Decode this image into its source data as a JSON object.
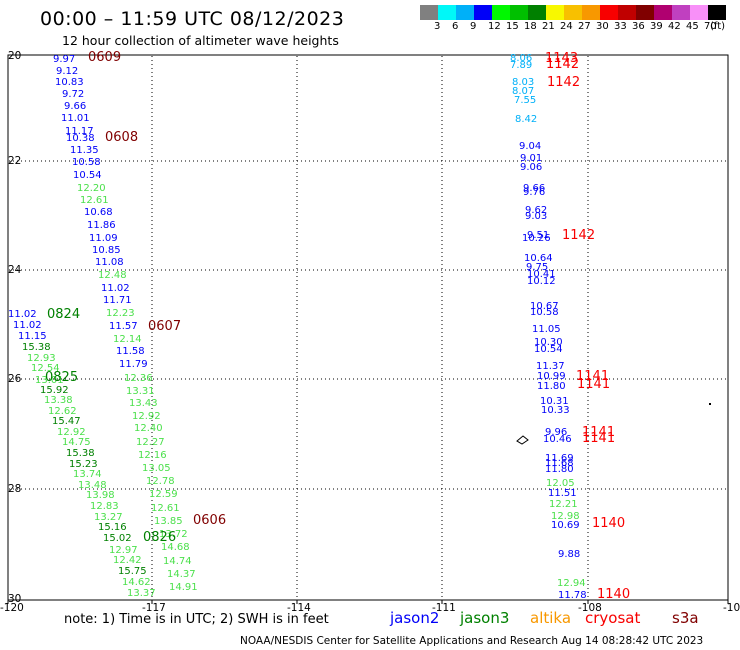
{
  "header": {
    "title": "00:00 – 11:59 UTC 08/12/2023",
    "subtitle": "12 hour collection of altimeter wave heights"
  },
  "legend": {
    "colors": [
      "#808080",
      "#00f8f8",
      "#00b0f8",
      "#0000f8",
      "#00f800",
      "#00c000",
      "#008000",
      "#f8f800",
      "#f8c000",
      "#f89800",
      "#f80000",
      "#c00000",
      "#800000",
      "#b00070",
      "#c040c0",
      "#f890f8",
      "#000000"
    ],
    "labels": [
      "3",
      "6",
      "9",
      "12",
      "15",
      "18",
      "21",
      "24",
      "27",
      "30",
      "33",
      "36",
      "39",
      "42",
      "45",
      "70"
    ],
    "unit": "(ft)"
  },
  "axes": {
    "x_ticks": [
      "-120",
      "-117",
      "-114",
      "-111",
      "-108",
      "-10"
    ],
    "y_ticks": [
      "20",
      "22",
      "24",
      "26",
      "28",
      "30"
    ]
  },
  "footer": {
    "note": "note:  1) Time is in UTC;  2) SWH is in feet",
    "credit": "NOAA/NESDIS Center for Satellite Applications and Research   Aug 14 08:28:42 UTC 2023"
  },
  "missions": [
    {
      "name": "jason2",
      "color": "#0000f8"
    },
    {
      "name": "jason3",
      "color": "#008000"
    },
    {
      "name": "altika",
      "color": "#f89800"
    },
    {
      "name": "cryosat",
      "color": "#f80000"
    },
    {
      "name": "s3a",
      "color": "#800000"
    }
  ],
  "tracks": [
    {
      "time": "0609",
      "color": "#800000"
    },
    {
      "time": "0608",
      "color": "#800000"
    },
    {
      "time": "0607",
      "color": "#800000"
    },
    {
      "time": "0606",
      "color": "#800000"
    },
    {
      "time": "0824",
      "color": "#008000"
    },
    {
      "time": "0825",
      "color": "#008000"
    },
    {
      "time": "0826",
      "color": "#008000"
    },
    {
      "time": "1143",
      "color": "#f80000"
    },
    {
      "time": "1142",
      "color": "#f80000"
    },
    {
      "time": "1142",
      "color": "#f80000"
    },
    {
      "time": "1142",
      "color": "#f80000"
    },
    {
      "time": "1141",
      "color": "#f80000"
    },
    {
      "time": "1141",
      "color": "#f80000"
    },
    {
      "time": "1141",
      "color": "#f80000"
    },
    {
      "time": "1141",
      "color": "#f80000"
    },
    {
      "time": "1140",
      "color": "#f80000"
    },
    {
      "time": "1140",
      "color": "#f80000"
    }
  ],
  "points": [
    {
      "v": "9.97",
      "c": "#0000f8"
    },
    {
      "v": "9.12",
      "c": "#0000f8"
    },
    {
      "v": "10.83",
      "c": "#0000f8"
    },
    {
      "v": "9.72",
      "c": "#0000f8"
    },
    {
      "v": "9.66",
      "c": "#0000f8"
    },
    {
      "v": "11.01",
      "c": "#0000f8"
    },
    {
      "v": "11.17",
      "c": "#0000f8"
    },
    {
      "v": "10.38",
      "c": "#0000f8"
    },
    {
      "v": "11.35",
      "c": "#0000f8"
    },
    {
      "v": "10.58",
      "c": "#0000f8"
    },
    {
      "v": "10.54",
      "c": "#0000f8"
    },
    {
      "v": "12.20",
      "c": "#4ce04c"
    },
    {
      "v": "12.61",
      "c": "#4ce04c"
    },
    {
      "v": "10.68",
      "c": "#0000f8"
    },
    {
      "v": "11.86",
      "c": "#0000f8"
    },
    {
      "v": "11.09",
      "c": "#0000f8"
    },
    {
      "v": "10.85",
      "c": "#0000f8"
    },
    {
      "v": "11.08",
      "c": "#0000f8"
    },
    {
      "v": "12.48",
      "c": "#4ce04c"
    },
    {
      "v": "11.02",
      "c": "#0000f8"
    },
    {
      "v": "11.71",
      "c": "#0000f8"
    },
    {
      "v": "12.23",
      "c": "#4ce04c"
    },
    {
      "v": "11.57",
      "c": "#0000f8"
    },
    {
      "v": "12.14",
      "c": "#4ce04c"
    },
    {
      "v": "11.58",
      "c": "#0000f8"
    },
    {
      "v": "11.79",
      "c": "#0000f8"
    },
    {
      "v": "12.36",
      "c": "#4ce04c"
    },
    {
      "v": "13.31",
      "c": "#4ce04c"
    },
    {
      "v": "13.43",
      "c": "#4ce04c"
    },
    {
      "v": "12.92",
      "c": "#4ce04c"
    },
    {
      "v": "12.40",
      "c": "#4ce04c"
    },
    {
      "v": "12.27",
      "c": "#4ce04c"
    },
    {
      "v": "12.16",
      "c": "#4ce04c"
    },
    {
      "v": "13.05",
      "c": "#4ce04c"
    },
    {
      "v": "12.78",
      "c": "#4ce04c"
    },
    {
      "v": "12.59",
      "c": "#4ce04c"
    },
    {
      "v": "12.61",
      "c": "#4ce04c"
    },
    {
      "v": "13.85",
      "c": "#4ce04c"
    },
    {
      "v": "13.72",
      "c": "#4ce04c"
    },
    {
      "v": "14.68",
      "c": "#4ce04c"
    },
    {
      "v": "14.74",
      "c": "#4ce04c"
    },
    {
      "v": "14.37",
      "c": "#4ce04c"
    },
    {
      "v": "14.91",
      "c": "#4ce04c"
    },
    {
      "v": "11.02",
      "c": "#0000f8"
    },
    {
      "v": "11.02",
      "c": "#0000f8"
    },
    {
      "v": "11.15",
      "c": "#0000f8"
    },
    {
      "v": "15.38",
      "c": "#008000"
    },
    {
      "v": "12.93",
      "c": "#4ce04c"
    },
    {
      "v": "12.54",
      "c": "#4ce04c"
    },
    {
      "v": "13.01",
      "c": "#4ce04c"
    },
    {
      "v": "15.92",
      "c": "#008000"
    },
    {
      "v": "13.38",
      "c": "#4ce04c"
    },
    {
      "v": "12.62",
      "c": "#4ce04c"
    },
    {
      "v": "15.47",
      "c": "#008000"
    },
    {
      "v": "12.92",
      "c": "#4ce04c"
    },
    {
      "v": "14.75",
      "c": "#4ce04c"
    },
    {
      "v": "15.38",
      "c": "#008000"
    },
    {
      "v": "15.23",
      "c": "#008000"
    },
    {
      "v": "13.74",
      "c": "#4ce04c"
    },
    {
      "v": "13.48",
      "c": "#4ce04c"
    },
    {
      "v": "13.98",
      "c": "#4ce04c"
    },
    {
      "v": "12.83",
      "c": "#4ce04c"
    },
    {
      "v": "13.27",
      "c": "#4ce04c"
    },
    {
      "v": "15.16",
      "c": "#008000"
    },
    {
      "v": "15.02",
      "c": "#008000"
    },
    {
      "v": "12.97",
      "c": "#4ce04c"
    },
    {
      "v": "12.42",
      "c": "#4ce04c"
    },
    {
      "v": "15.75",
      "c": "#008000"
    },
    {
      "v": "14.62",
      "c": "#4ce04c"
    },
    {
      "v": "13.37",
      "c": "#4ce04c"
    },
    {
      "v": "8.06",
      "c": "#00b0f8"
    },
    {
      "v": "7.89",
      "c": "#00b0f8"
    },
    {
      "v": "8.03",
      "c": "#00b0f8"
    },
    {
      "v": "8.07",
      "c": "#00b0f8"
    },
    {
      "v": "7.55",
      "c": "#00b0f8"
    },
    {
      "v": "8.42",
      "c": "#00b0f8"
    },
    {
      "v": "9.04",
      "c": "#0000f8"
    },
    {
      "v": "9.01",
      "c": "#0000f8"
    },
    {
      "v": "9.06",
      "c": "#0000f8"
    },
    {
      "v": "9.66",
      "c": "#0000f8"
    },
    {
      "v": "9.76",
      "c": "#0000f8"
    },
    {
      "v": "9.62",
      "c": "#0000f8"
    },
    {
      "v": "9.03",
      "c": "#0000f8"
    },
    {
      "v": "9.51",
      "c": "#0000f8"
    },
    {
      "v": "10.26",
      "c": "#0000f8"
    },
    {
      "v": "10.64",
      "c": "#0000f8"
    },
    {
      "v": "9.75",
      "c": "#0000f8"
    },
    {
      "v": "10.41",
      "c": "#0000f8"
    },
    {
      "v": "10.12",
      "c": "#0000f8"
    },
    {
      "v": "10.67",
      "c": "#0000f8"
    },
    {
      "v": "10.58",
      "c": "#0000f8"
    },
    {
      "v": "11.05",
      "c": "#0000f8"
    },
    {
      "v": "10.30",
      "c": "#0000f8"
    },
    {
      "v": "10.54",
      "c": "#0000f8"
    },
    {
      "v": "11.37",
      "c": "#0000f8"
    },
    {
      "v": "10.99",
      "c": "#0000f8"
    },
    {
      "v": "11.80",
      "c": "#0000f8"
    },
    {
      "v": "10.31",
      "c": "#0000f8"
    },
    {
      "v": "10.33",
      "c": "#0000f8"
    },
    {
      "v": "9.96",
      "c": "#0000f8"
    },
    {
      "v": "10.46",
      "c": "#0000f8"
    },
    {
      "v": "11.69",
      "c": "#0000f8"
    },
    {
      "v": "11.68",
      "c": "#0000f8"
    },
    {
      "v": "11.80",
      "c": "#0000f8"
    },
    {
      "v": "12.05",
      "c": "#4ce04c"
    },
    {
      "v": "11.51",
      "c": "#0000f8"
    },
    {
      "v": "12.21",
      "c": "#4ce04c"
    },
    {
      "v": "12.98",
      "c": "#4ce04c"
    },
    {
      "v": "10.69",
      "c": "#0000f8"
    },
    {
      "v": "9.88",
      "c": "#0000f8"
    },
    {
      "v": "12.94",
      "c": "#4ce04c"
    },
    {
      "v": "11.78",
      "c": "#0000f8"
    }
  ]
}
